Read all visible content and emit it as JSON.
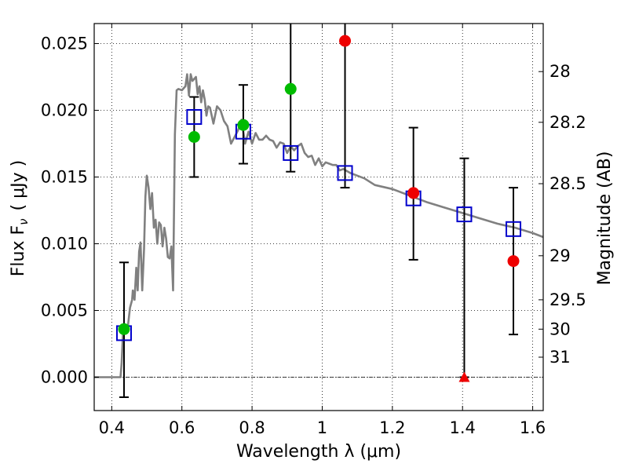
{
  "chart_data": {
    "type": "scatter",
    "xlabel": "Wavelength  λ (μm)",
    "ylabel": "Flux  F",
    "ylabel_sub": "ν",
    "ylabel_unit": "( μJy )",
    "ylabel_right": "Magnitude (AB)",
    "xlim": [
      0.35,
      1.63
    ],
    "ylim": [
      -0.0025,
      0.0265
    ],
    "grid": true,
    "x_ticks": [
      0.4,
      0.6,
      0.8,
      1.0,
      1.2,
      1.4,
      1.6
    ],
    "x_tick_labels": [
      "0.4",
      "0.6",
      "0.8",
      "1",
      "1.2",
      "1.4",
      "1.6"
    ],
    "y_ticks": [
      0.0,
      0.005,
      0.01,
      0.015,
      0.02,
      0.025
    ],
    "y_tick_labels": [
      "0.000",
      "0.005",
      "0.010",
      "0.015",
      "0.020",
      "0.025"
    ],
    "right_ticks": [
      {
        "label": "28",
        "flux": 0.0229
      },
      {
        "label": "28.2",
        "flux": 0.0191
      },
      {
        "label": "28.5",
        "flux": 0.0145
      },
      {
        "label": "29",
        "flux": 0.0091
      },
      {
        "label": "29.5",
        "flux": 0.0058
      },
      {
        "label": "30",
        "flux": 0.0036
      },
      {
        "label": "31",
        "flux": 0.0015
      }
    ],
    "model_sed": {
      "color": "#808080",
      "x": [
        0.35,
        0.425,
        0.428,
        0.432,
        0.438,
        0.445,
        0.452,
        0.458,
        0.46,
        0.465,
        0.47,
        0.474,
        0.478,
        0.482,
        0.487,
        0.492,
        0.496,
        0.5,
        0.505,
        0.51,
        0.515,
        0.52,
        0.525,
        0.53,
        0.535,
        0.54,
        0.545,
        0.55,
        0.555,
        0.56,
        0.565,
        0.57,
        0.575,
        0.58,
        0.585,
        0.59,
        0.6,
        0.61,
        0.615,
        0.62,
        0.625,
        0.63,
        0.64,
        0.645,
        0.65,
        0.655,
        0.66,
        0.665,
        0.67,
        0.675,
        0.68,
        0.69,
        0.7,
        0.71,
        0.72,
        0.73,
        0.74,
        0.75,
        0.76,
        0.77,
        0.78,
        0.79,
        0.8,
        0.81,
        0.82,
        0.83,
        0.84,
        0.85,
        0.86,
        0.87,
        0.88,
        0.89,
        0.9,
        0.91,
        0.92,
        0.93,
        0.94,
        0.95,
        0.96,
        0.97,
        0.98,
        0.99,
        1.0,
        1.01,
        1.02,
        1.03,
        1.04,
        1.05,
        1.06,
        1.08,
        1.1,
        1.12,
        1.15,
        1.2,
        1.25,
        1.3,
        1.35,
        1.4,
        1.45,
        1.5,
        1.55,
        1.6,
        1.63
      ],
      "y": [
        0.0,
        0.0,
        0.001,
        0.0032,
        0.0034,
        0.0036,
        0.0052,
        0.0058,
        0.0065,
        0.0058,
        0.0082,
        0.0065,
        0.0094,
        0.0101,
        0.0065,
        0.0096,
        0.0135,
        0.0151,
        0.0142,
        0.0126,
        0.0138,
        0.0112,
        0.0118,
        0.01,
        0.0116,
        0.0114,
        0.0098,
        0.0112,
        0.0104,
        0.009,
        0.0089,
        0.0098,
        0.0065,
        0.0182,
        0.0215,
        0.0216,
        0.0215,
        0.0218,
        0.0227,
        0.0211,
        0.0227,
        0.0222,
        0.0225,
        0.0212,
        0.0218,
        0.0206,
        0.0215,
        0.0208,
        0.0196,
        0.0203,
        0.0202,
        0.019,
        0.0203,
        0.02,
        0.0192,
        0.0188,
        0.0175,
        0.018,
        0.0185,
        0.0193,
        0.0175,
        0.0184,
        0.0175,
        0.0183,
        0.0178,
        0.0178,
        0.0181,
        0.0178,
        0.0177,
        0.0172,
        0.0176,
        0.0175,
        0.0168,
        0.0173,
        0.017,
        0.0173,
        0.0175,
        0.0168,
        0.0165,
        0.0166,
        0.0159,
        0.0164,
        0.0158,
        0.0161,
        0.016,
        0.0159,
        0.0159,
        0.0155,
        0.0156,
        0.0153,
        0.0151,
        0.0149,
        0.0144,
        0.0141,
        0.0136,
        0.0131,
        0.0127,
        0.0123,
        0.0119,
        0.0115,
        0.0112,
        0.0108,
        0.0105
      ]
    },
    "series": [
      {
        "kind": "model_photometry",
        "marker": "open-square",
        "color": "#0000cc",
        "points": [
          {
            "x": 0.435,
            "y": 0.0033
          },
          {
            "x": 0.635,
            "y": 0.0195
          },
          {
            "x": 0.775,
            "y": 0.0184
          },
          {
            "x": 0.91,
            "y": 0.0168
          },
          {
            "x": 1.065,
            "y": 0.0153
          },
          {
            "x": 1.26,
            "y": 0.0134
          },
          {
            "x": 1.405,
            "y": 0.0122
          },
          {
            "x": 1.545,
            "y": 0.0111
          }
        ]
      },
      {
        "kind": "measurement",
        "marker": "filled-circle",
        "color": "#00bb00",
        "points": [
          {
            "x": 0.435,
            "y": 0.0036
          },
          {
            "x": 0.635,
            "y": 0.018
          },
          {
            "x": 0.775,
            "y": 0.0189
          },
          {
            "x": 0.91,
            "y": 0.0216
          }
        ]
      },
      {
        "kind": "measurement",
        "marker": "filled-circle",
        "color": "#ee0000",
        "points": [
          {
            "x": 1.065,
            "y": 0.0252
          },
          {
            "x": 1.26,
            "y": 0.0138
          },
          {
            "x": 1.545,
            "y": 0.0087
          }
        ]
      },
      {
        "kind": "upper_limit",
        "marker": "filled-triangle",
        "color": "#ee0000",
        "points": [
          {
            "x": 1.405,
            "y": 0.0
          }
        ]
      }
    ],
    "error_bars": [
      {
        "x": 0.435,
        "low": -0.0015,
        "high": 0.0086
      },
      {
        "x": 0.635,
        "low": 0.015,
        "high": 0.021
      },
      {
        "x": 0.775,
        "low": 0.016,
        "high": 0.0219
      },
      {
        "x": 0.91,
        "low": 0.0154,
        "high": 0.0265
      },
      {
        "x": 1.065,
        "low": 0.0142,
        "high": 0.0265
      },
      {
        "x": 1.26,
        "low": 0.0088,
        "high": 0.0187
      },
      {
        "x": 1.405,
        "low": 0.0,
        "high": 0.0164
      },
      {
        "x": 1.545,
        "low": 0.0032,
        "high": 0.0142
      }
    ],
    "zero_line": {
      "y": 0.0,
      "style": "dash-dot"
    }
  }
}
